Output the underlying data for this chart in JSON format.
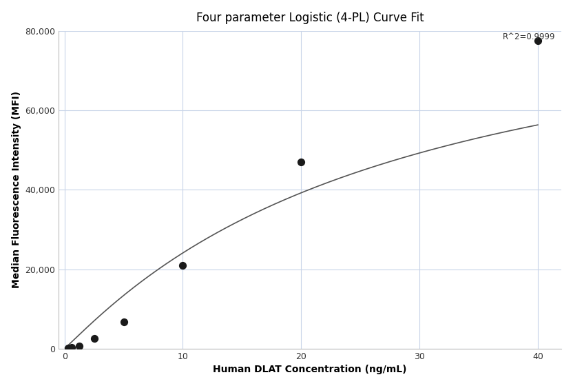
{
  "title": "Four parameter Logistic (4-PL) Curve Fit",
  "xlabel": "Human DLAT Concentration (ng/mL)",
  "ylabel": "Median Fluorescence Intensity (MFI)",
  "r_squared_label": "R^2=0.9999",
  "scatter_x": [
    0.313,
    0.625,
    1.25,
    2.5,
    5.0,
    10.0,
    20.0,
    40.0
  ],
  "scatter_y": [
    150,
    350,
    700,
    2500,
    6800,
    21000,
    47000,
    77500
  ],
  "xlim": [
    -0.5,
    42
  ],
  "ylim": [
    0,
    80000
  ],
  "yticks": [
    0,
    20000,
    40000,
    60000,
    80000
  ],
  "xticks": [
    0,
    10,
    20,
    30,
    40
  ],
  "curve_color": "#555555",
  "scatter_color": "#1a1a1a",
  "grid_color": "#c8d4e8",
  "background_color": "#ffffff",
  "title_fontsize": 12,
  "label_fontsize": 10,
  "annotation_fontsize": 8.5,
  "4pl_A": 50,
  "4pl_B": 1.05,
  "4pl_C": 28.0,
  "4pl_D": 95000
}
